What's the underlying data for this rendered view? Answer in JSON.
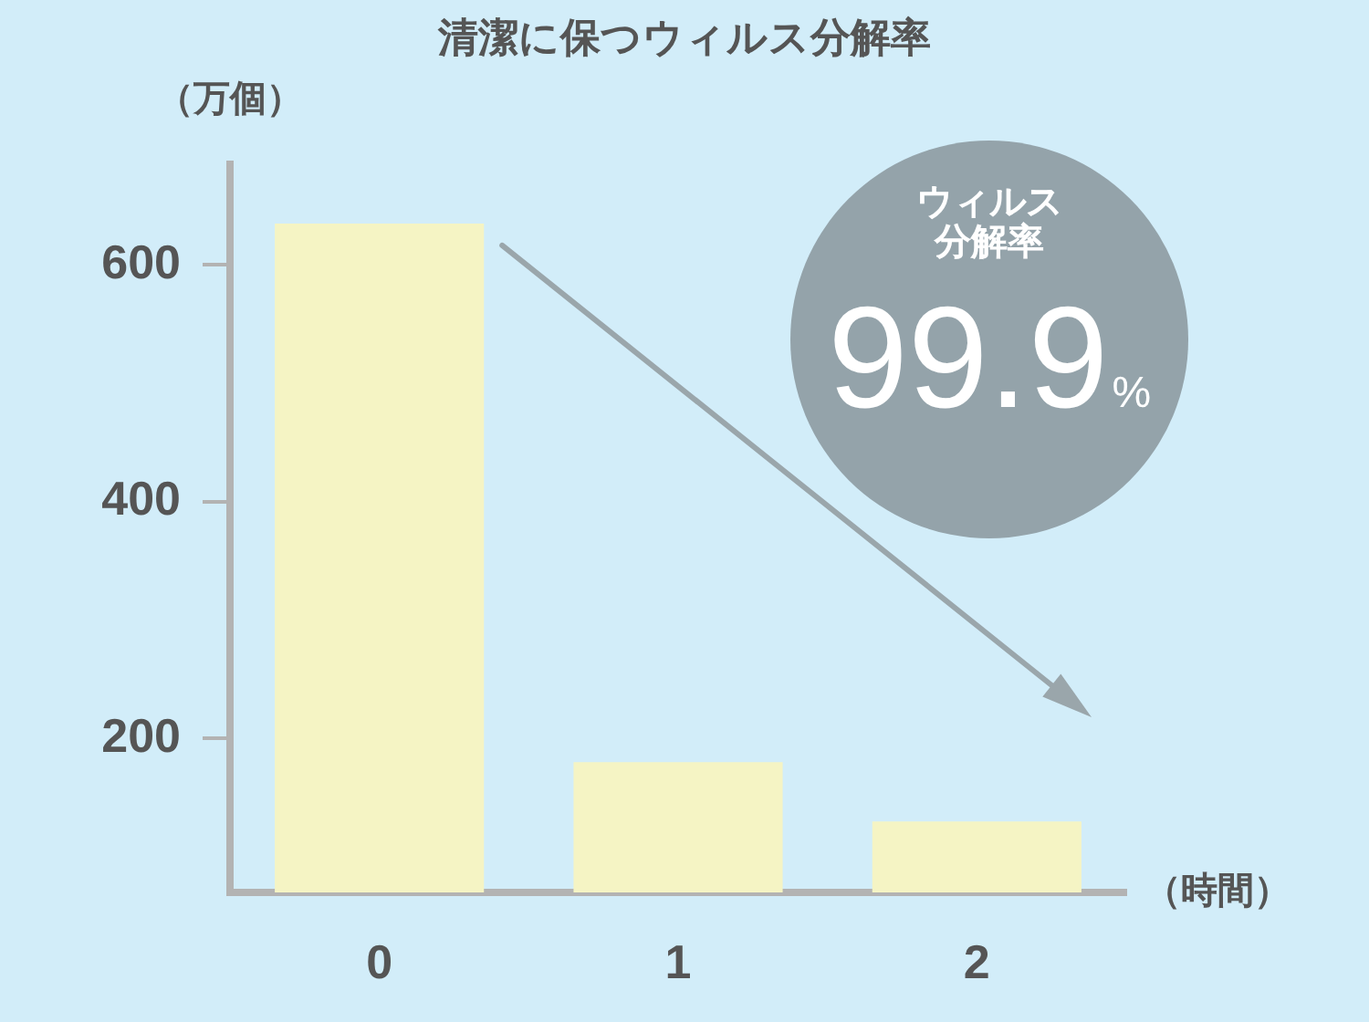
{
  "chart_data": {
    "type": "bar",
    "title": "清潔に保つウィルス分解率",
    "ylabel": "（万個）",
    "xlabel": "（時間）",
    "categories": [
      "0",
      "1",
      "2"
    ],
    "values": [
      635,
      180,
      130
    ],
    "color": "#f5f4c4",
    "ylim": [
      70,
      685
    ],
    "yticks": [
      200,
      400,
      600
    ],
    "annotations": [
      "ウィルス分解率",
      "99.9%"
    ]
  }
}
